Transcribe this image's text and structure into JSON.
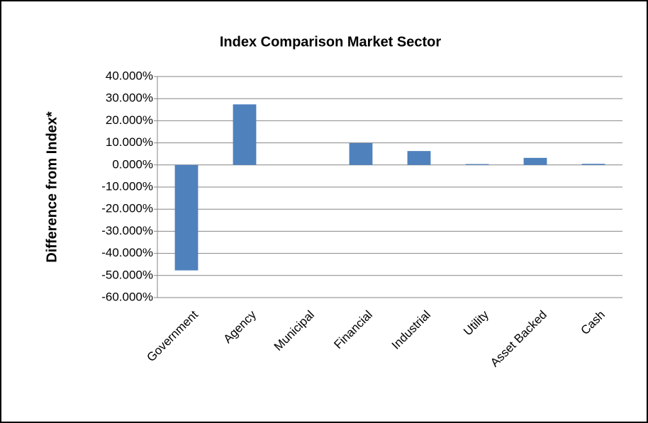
{
  "chart_data": {
    "type": "bar",
    "title": "Index Comparison Market Sector",
    "y_label": "Difference from Index*",
    "categories": [
      "Government",
      "Agency",
      "Municipal",
      "Financial",
      "Industrial",
      "Utility",
      "Asset Backed",
      "Cash"
    ],
    "values": [
      -47.7,
      27.4,
      0,
      9.9,
      6.3,
      0.4,
      3.2,
      0.5
    ],
    "color": "#4f81bd",
    "ylim": [
      -60,
      40
    ],
    "yticks": [
      {
        "value": -60,
        "label": "-60.000%"
      },
      {
        "value": -50,
        "label": "-50.000%"
      },
      {
        "value": -40,
        "label": "-40.000%"
      },
      {
        "value": -30,
        "label": "-30.000%"
      },
      {
        "value": -20,
        "label": "-20.000%"
      },
      {
        "value": -10,
        "label": "-10.000%"
      },
      {
        "value": 0,
        "label": "0.000%"
      },
      {
        "value": 10,
        "label": "10.000%"
      },
      {
        "value": 20,
        "label": "20.000%"
      },
      {
        "value": 30,
        "label": "30.000%"
      },
      {
        "value": 40,
        "label": "40.000%"
      }
    ],
    "grid": true
  }
}
